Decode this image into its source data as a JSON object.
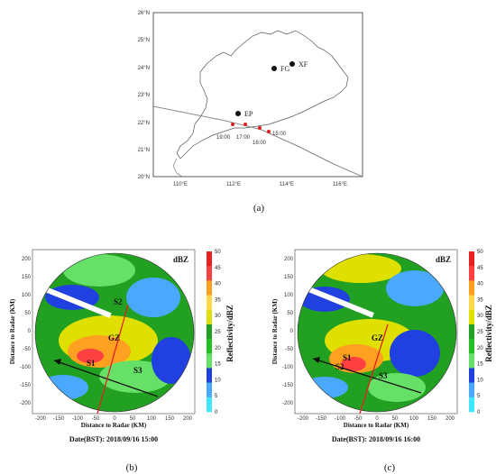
{
  "map": {
    "lat_labels": [
      "26°N",
      "25°N",
      "24°N",
      "23°N",
      "22°N",
      "21°N",
      "20°N"
    ],
    "lon_labels": [
      "110°E",
      "112°E",
      "114°E",
      "116°E"
    ],
    "stations": [
      {
        "name": "FG"
      },
      {
        "name": "XF"
      },
      {
        "name": "EP"
      }
    ],
    "track_times": [
      "19:00",
      "17:00",
      "16:00",
      "15:00"
    ],
    "caption": "(a)"
  },
  "radar_panels": [
    {
      "caption": "(b)",
      "date": "Date(BST): 2018/09/16   15:00",
      "xlabel": "Distance to Radar (KM)",
      "ylabel": "Distance to Radar (KM)",
      "unit": "dBZ",
      "labels": [
        "GZ",
        "S1",
        "S2",
        "S3"
      ]
    },
    {
      "caption": "(c)",
      "date": "Date(BST): 2018/09/16   16:00",
      "xlabel": "Distance to Radar (KM)",
      "ylabel": "Distance to Radar (KM)",
      "unit": "dBZ",
      "labels": [
        "GZ",
        "S1",
        "S2",
        "S3"
      ]
    }
  ],
  "ticks": {
    "x": [
      "-200",
      "-150",
      "-100",
      "-50",
      "0",
      "50",
      "100",
      "150",
      "200"
    ],
    "y": [
      "200",
      "150",
      "100",
      "50",
      "0",
      "-50",
      "-100",
      "-150",
      "-200"
    ]
  },
  "colorbar": {
    "title": "Reflectivity/dBZ",
    "ticks": [
      "50",
      "45",
      "40",
      "35",
      "30",
      "25",
      "20",
      "15",
      "10",
      "5",
      "0"
    ],
    "colors": [
      "#e82020",
      "#ff4040",
      "#ffa020",
      "#ffd84a",
      "#e0e000",
      "#22a022",
      "#22c022",
      "#66e066",
      "#2040e0",
      "#4aa8ff",
      "#40e8ff"
    ]
  },
  "colors": {
    "track_line": "#777777",
    "track_point": "#e02020",
    "coast": "#555555",
    "section_line": "#111111",
    "red_line": "#e02020"
  }
}
